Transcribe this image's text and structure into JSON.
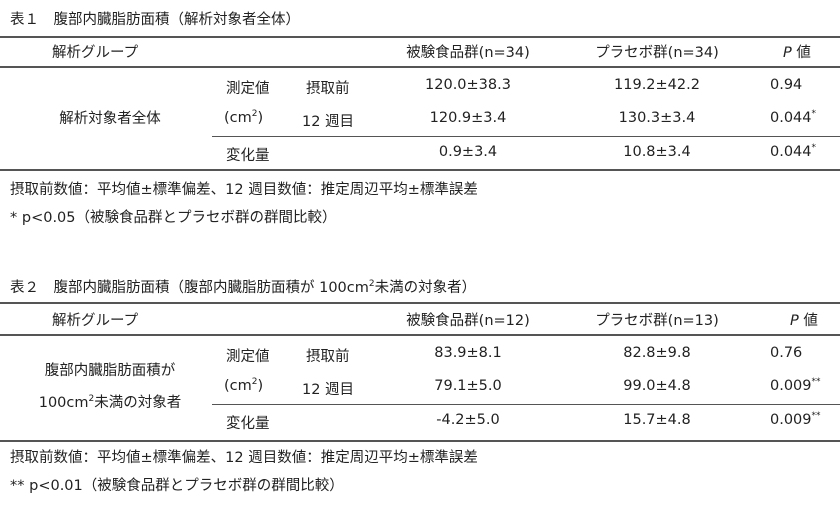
{
  "tables": [
    {
      "title": "表１　腹部内臓脂肪面積（解析対象者全体）",
      "headers": {
        "group": "解析グループ",
        "test": "被験食品群(n=34)",
        "placebo": "プラセボ群(n=34)",
        "p_italic": "P",
        "p_suffix": "値"
      },
      "group_label_line1": "解析対象者全体",
      "group_label_line2": "",
      "measure_label": "測定値",
      "unit_open": "(cm",
      "unit_sup": "2",
      "unit_close": ")",
      "rows": [
        {
          "label": "摂取前",
          "test": "120.0±38.3",
          "placebo": "119.2±42.2",
          "p": "0.94",
          "mark": ""
        },
        {
          "label": "12 週目",
          "test": "120.9±3.4",
          "placebo": "130.3±3.4",
          "p": "0.044",
          "mark": "*"
        },
        {
          "label": "変化量",
          "test": "0.9±3.4",
          "placebo": "10.8±3.4",
          "p": "0.044",
          "mark": "*"
        }
      ],
      "note1": "摂取前数値：平均値±標準偏差、12 週目数値：推定周辺平均±標準誤差",
      "note2": "* p<0.05（被験食品群とプラセボ群の群間比較）"
    },
    {
      "title_a": "表２　腹部内臓脂肪面積（腹部内臓脂肪面積が 100cm",
      "title_sup": "2",
      "title_b": "未満の対象者）",
      "headers": {
        "group": "解析グループ",
        "test": "被験食品群(n=12)",
        "placebo": "プラセボ群(n=13)",
        "p_italic": "P",
        "p_suffix": "値"
      },
      "group_label_line1": "腹部内臓脂肪面積が",
      "group_label_line2a": "100cm",
      "group_label_line2sup": "2",
      "group_label_line2b": "未満の対象者",
      "measure_label": "測定値",
      "unit_open": "(cm",
      "unit_sup": "2",
      "unit_close": ")",
      "rows": [
        {
          "label": "摂取前",
          "test": "83.9±8.1",
          "placebo": "82.8±9.8",
          "p": "0.76",
          "mark": ""
        },
        {
          "label": "12 週目",
          "test": "79.1±5.0",
          "placebo": "99.0±4.8",
          "p": "0.009",
          "mark": "**"
        },
        {
          "label": "変化量",
          "test": "-4.2±5.0",
          "placebo": "15.7±4.8",
          "p": "0.009",
          "mark": "**"
        }
      ],
      "note1": "摂取前数値：平均値±標準偏差、12 週目数値：推定周辺平均±標準誤差",
      "note2": "** p<0.01（被験食品群とプラセボ群の群間比較）"
    }
  ]
}
